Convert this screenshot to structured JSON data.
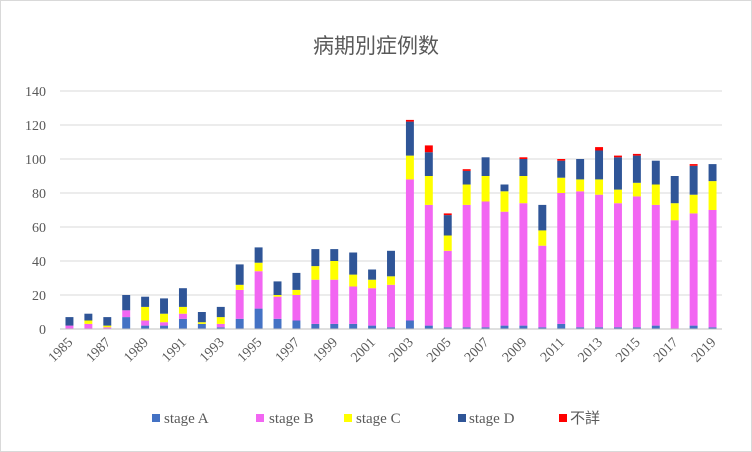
{
  "chart_data": {
    "type": "bar",
    "stacked": true,
    "title": "病期別症例数",
    "xlabel": "",
    "ylabel": "",
    "ylim": [
      0,
      140
    ],
    "yticks": [
      0,
      20,
      40,
      60,
      80,
      100,
      120,
      140
    ],
    "grid": true,
    "legend_position": "bottom",
    "categories": [
      "1985",
      "1986",
      "1987",
      "1988",
      "1989",
      "1990",
      "1991",
      "1992",
      "1993",
      "1994",
      "1995",
      "1996",
      "1997",
      "1998",
      "1999",
      "2000",
      "2001",
      "2002",
      "2003",
      "2004",
      "2005",
      "2006",
      "2007",
      "2008",
      "2009",
      "2010",
      "2011",
      "2012",
      "2013",
      "2014",
      "2015",
      "2016",
      "2017",
      "2018",
      "2019"
    ],
    "x_tick_labels": [
      "1985",
      "1987",
      "1989",
      "1991",
      "1993",
      "1995",
      "1997",
      "1999",
      "2001",
      "2003",
      "2005",
      "2007",
      "2009",
      "2011",
      "2013",
      "2015",
      "2017",
      "2019"
    ],
    "series": [
      {
        "name": "stage A",
        "color": "#4472C4",
        "values": [
          0,
          0,
          0,
          7,
          2,
          2,
          6,
          3,
          1,
          6,
          12,
          6,
          5,
          3,
          3,
          3,
          2,
          1,
          5,
          2,
          1,
          1,
          1,
          2,
          2,
          1,
          3,
          1,
          1,
          1,
          1,
          2,
          0,
          2,
          1
        ]
      },
      {
        "name": "stage B",
        "color": "#F266F2",
        "values": [
          2,
          3,
          1,
          4,
          3,
          2,
          3,
          0,
          2,
          17,
          22,
          13,
          15,
          26,
          26,
          22,
          22,
          25,
          83,
          71,
          45,
          72,
          74,
          67,
          72,
          48,
          77,
          80,
          78,
          73,
          77,
          71,
          64,
          66,
          69
        ]
      },
      {
        "name": "stage C",
        "color": "#FFFF00",
        "values": [
          0,
          2,
          1,
          0,
          8,
          5,
          4,
          1,
          4,
          3,
          5,
          1,
          3,
          8,
          11,
          7,
          5,
          5,
          14,
          17,
          9,
          12,
          15,
          12,
          16,
          9,
          9,
          7,
          9,
          8,
          8,
          12,
          10,
          11,
          17
        ]
      },
      {
        "name": "stage D",
        "color": "#2F5597",
        "values": [
          5,
          4,
          5,
          9,
          6,
          9,
          11,
          6,
          6,
          12,
          9,
          8,
          10,
          10,
          7,
          13,
          6,
          15,
          20,
          14,
          12,
          8,
          11,
          4,
          10,
          15,
          10,
          12,
          17,
          19,
          16,
          14,
          16,
          17,
          10
        ]
      },
      {
        "name": "不詳",
        "color": "#FF0000",
        "values": [
          0,
          0,
          0,
          0,
          0,
          0,
          0,
          0,
          0,
          0,
          0,
          0,
          0,
          0,
          0,
          0,
          0,
          0,
          1,
          4,
          1,
          1,
          0,
          0,
          1,
          0,
          1,
          0,
          2,
          1,
          1,
          0,
          0,
          1,
          0
        ]
      }
    ]
  }
}
